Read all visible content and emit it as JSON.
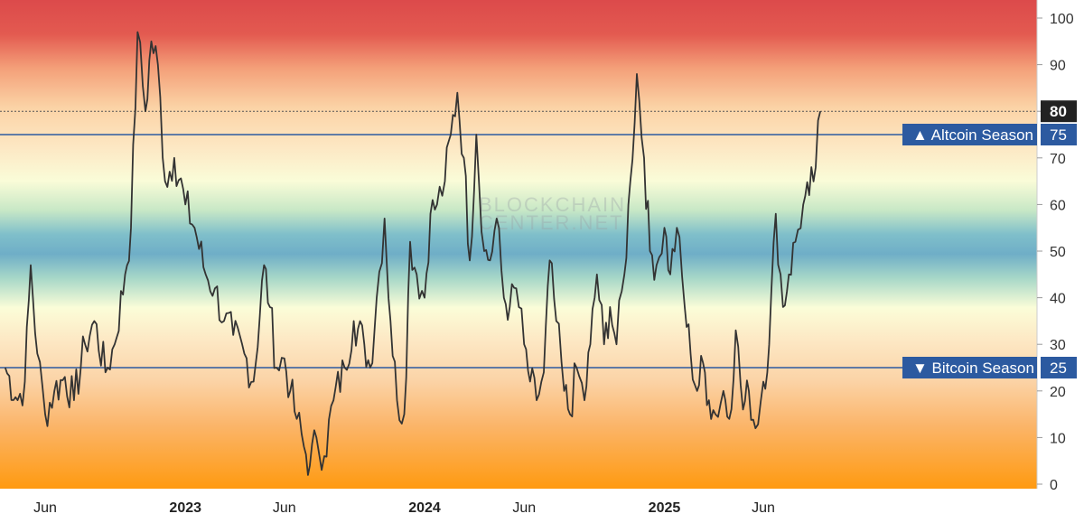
{
  "chart_data": {
    "type": "line",
    "title": "",
    "xlabel": "",
    "ylabel": "",
    "ylim": [
      0,
      100
    ],
    "y_ticks": [
      "0",
      "10",
      "20",
      "30",
      "40",
      "50",
      "60",
      "70",
      "80",
      "90",
      "100"
    ],
    "x_ticks": [
      {
        "label": "Jun",
        "date": "2022-06",
        "major": false
      },
      {
        "label": "2023",
        "date": "2023-01",
        "major": true
      },
      {
        "label": "Jun",
        "date": "2023-06",
        "major": false
      },
      {
        "label": "2024",
        "date": "2024-01",
        "major": true
      },
      {
        "label": "Jun",
        "date": "2024-06",
        "major": false
      },
      {
        "label": "2025",
        "date": "2025-01",
        "major": true
      },
      {
        "label": "Jun",
        "date": "2025-06",
        "major": false
      }
    ],
    "x_range": [
      "2022-04",
      "2026-04"
    ],
    "background": "gradient bands from orange (0) through yellow, green, blue (~50), green, yellow to red (100)",
    "watermark": [
      "BLOCKCHAIN",
      "CENTER.NET"
    ],
    "series": [
      {
        "color": "#333333",
        "points": [
          [
            "2022-04",
            25
          ],
          [
            "2022-04-20",
            18
          ],
          [
            "2022-05",
            22
          ],
          [
            "2022-05-10",
            47
          ],
          [
            "2022-05-20",
            28
          ],
          [
            "2022-06",
            15
          ],
          [
            "2022-06-15",
            20
          ],
          [
            "2022-07",
            23
          ],
          [
            "2022-07-15",
            18
          ],
          [
            "2022-08",
            30
          ],
          [
            "2022-08-15",
            35
          ],
          [
            "2022-09",
            24
          ],
          [
            "2022-09-15",
            30
          ],
          [
            "2022-10",
            45
          ],
          [
            "2022-10-10",
            55
          ],
          [
            "2022-10-20",
            97
          ],
          [
            "2022-11",
            80
          ],
          [
            "2022-11-10",
            95
          ],
          [
            "2022-11-20",
            90
          ],
          [
            "2022-12",
            65
          ],
          [
            "2022-12-15",
            70
          ],
          [
            "2023-01",
            60
          ],
          [
            "2023-01-15",
            55
          ],
          [
            "2023-02",
            45
          ],
          [
            "2023-02-15",
            42
          ],
          [
            "2023-03",
            35
          ],
          [
            "2023-03-15",
            32
          ],
          [
            "2023-04",
            28
          ],
          [
            "2023-04-15",
            22
          ],
          [
            "2023-05",
            47
          ],
          [
            "2023-05-10",
            38
          ],
          [
            "2023-05-20",
            25
          ],
          [
            "2023-06",
            27
          ],
          [
            "2023-06-10",
            20
          ],
          [
            "2023-06-20",
            14
          ],
          [
            "2023-07",
            8
          ],
          [
            "2023-07-10",
            4
          ],
          [
            "2023-07-20",
            10
          ],
          [
            "2023-08",
            6
          ],
          [
            "2023-08-15",
            18
          ],
          [
            "2023-09",
            25
          ],
          [
            "2023-09-15",
            35
          ],
          [
            "2023-10",
            30
          ],
          [
            "2023-10-10",
            25
          ],
          [
            "2023-10-20",
            40
          ],
          [
            "2023-11",
            57
          ],
          [
            "2023-11-10",
            35
          ],
          [
            "2023-11-20",
            18
          ],
          [
            "2023-12",
            15
          ],
          [
            "2023-12-10",
            52
          ],
          [
            "2023-12-20",
            45
          ],
          [
            "2024-01",
            40
          ],
          [
            "2024-01-10",
            58
          ],
          [
            "2024-01-20",
            60
          ],
          [
            "2024-02",
            65
          ],
          [
            "2024-02-10",
            75
          ],
          [
            "2024-02-20",
            84
          ],
          [
            "2024-03",
            70
          ],
          [
            "2024-03-10",
            48
          ],
          [
            "2024-03-20",
            75
          ],
          [
            "2024-04",
            50
          ],
          [
            "2024-04-10",
            48
          ],
          [
            "2024-04-20",
            57
          ],
          [
            "2024-05",
            40
          ],
          [
            "2024-05-10",
            38
          ],
          [
            "2024-05-20",
            42
          ],
          [
            "2024-06",
            30
          ],
          [
            "2024-06-10",
            22
          ],
          [
            "2024-06-20",
            18
          ],
          [
            "2024-07",
            24
          ],
          [
            "2024-07-10",
            48
          ],
          [
            "2024-07-20",
            35
          ],
          [
            "2024-08",
            20
          ],
          [
            "2024-08-10",
            15
          ],
          [
            "2024-08-20",
            25
          ],
          [
            "2024-09",
            18
          ],
          [
            "2024-09-10",
            30
          ],
          [
            "2024-09-20",
            45
          ],
          [
            "2024-10",
            30
          ],
          [
            "2024-10-10",
            38
          ],
          [
            "2024-10-20",
            30
          ],
          [
            "2024-11",
            45
          ],
          [
            "2024-11-10",
            65
          ],
          [
            "2024-11-20",
            88
          ],
          [
            "2024-12",
            70
          ],
          [
            "2024-12-10",
            50
          ],
          [
            "2024-12-20",
            47
          ],
          [
            "2025-01",
            55
          ],
          [
            "2025-01-10",
            45
          ],
          [
            "2025-01-20",
            55
          ],
          [
            "2025-02",
            38
          ],
          [
            "2025-02-10",
            28
          ],
          [
            "2025-02-20",
            20
          ],
          [
            "2025-03",
            26
          ],
          [
            "2025-03-10",
            18
          ],
          [
            "2025-03-20",
            15
          ],
          [
            "2025-04",
            20
          ],
          [
            "2025-04-10",
            14
          ],
          [
            "2025-04-20",
            33
          ],
          [
            "2025-05",
            16
          ],
          [
            "2025-05-10",
            20
          ],
          [
            "2025-05-20",
            12
          ],
          [
            "2025-06",
            22
          ],
          [
            "2025-06-10",
            30
          ],
          [
            "2025-06-20",
            58
          ],
          [
            "2025-07",
            38
          ],
          [
            "2025-07-10",
            45
          ],
          [
            "2025-07-20",
            52
          ],
          [
            "2025-08",
            60
          ],
          [
            "2025-08-10",
            62
          ],
          [
            "2025-08-20",
            68
          ],
          [
            "2025-08-27",
            80
          ]
        ]
      }
    ],
    "reference_lines": [
      {
        "label": "Altcoin Season",
        "value": 75,
        "marker": "▲",
        "value_label": "75"
      },
      {
        "label": "Bitcoin Season",
        "value": 25,
        "marker": "▼",
        "value_label": "25"
      }
    ],
    "current_value": {
      "value": 80,
      "label": "80"
    },
    "colors": {
      "line": "#333333",
      "ref_line": "#2c5aa0",
      "tag": "#2c5aa0",
      "current": "#222222"
    }
  }
}
